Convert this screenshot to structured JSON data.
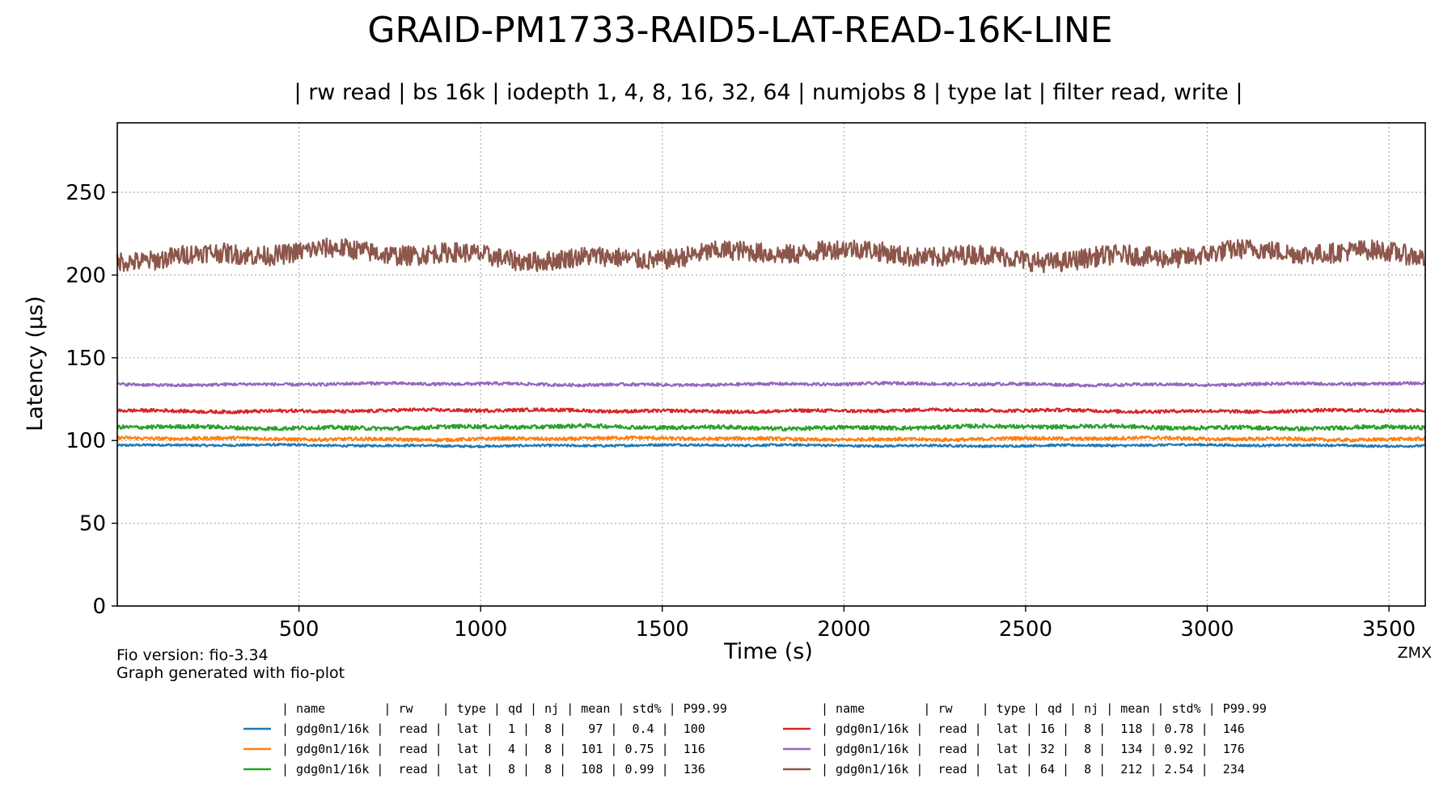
{
  "chart_data": {
    "type": "line",
    "title": "GRAID-PM1733-RAID5-LAT-READ-16K-LINE",
    "subtitle": "| rw read | bs 16k | iodepth 1, 4, 8, 16, 32, 64 | numjobs 8 | type lat | filter read, write |",
    "xlabel": "Time (s)",
    "ylabel": "Latency (µs)",
    "xlim": [
      0,
      3600
    ],
    "ylim": [
      0,
      292
    ],
    "xticks": [
      500,
      1000,
      1500,
      2000,
      2500,
      3000,
      3500
    ],
    "yticks": [
      0,
      50,
      100,
      150,
      200,
      250
    ],
    "grid": true,
    "series": [
      {
        "name": "gdg0n1/16k",
        "color": "#1f77b4",
        "rw": "read",
        "type": "lat",
        "qd": 1,
        "nj": 8,
        "mean": 97,
        "std": 0.4,
        "p9999": 100,
        "amp": 0.6
      },
      {
        "name": "gdg0n1/16k",
        "color": "#ff7f0e",
        "rw": "read",
        "type": "lat",
        "qd": 4,
        "nj": 8,
        "mean": 101,
        "std": 0.75,
        "p9999": 116,
        "amp": 0.9
      },
      {
        "name": "gdg0n1/16k",
        "color": "#2ca02c",
        "rw": "read",
        "type": "lat",
        "qd": 8,
        "nj": 8,
        "mean": 108,
        "std": 0.99,
        "p9999": 136,
        "amp": 1.1
      },
      {
        "name": "gdg0n1/16k",
        "color": "#d62728",
        "rw": "read",
        "type": "lat",
        "qd": 16,
        "nj": 8,
        "mean": 118,
        "std": 0.78,
        "p9999": 146,
        "amp": 0.9
      },
      {
        "name": "gdg0n1/16k",
        "color": "#9467bd",
        "rw": "read",
        "type": "lat",
        "qd": 32,
        "nj": 8,
        "mean": 134,
        "std": 0.92,
        "p9999": 176,
        "amp": 0.8
      },
      {
        "name": "gdg0n1/16k",
        "color": "#8c564b",
        "rw": "read",
        "type": "lat",
        "qd": 64,
        "nj": 8,
        "mean": 212,
        "std": 2.54,
        "p9999": 234,
        "amp": 5.5
      }
    ]
  },
  "footer": {
    "fio_version": "Fio version: fio-3.34",
    "generated": "Graph generated with fio-plot",
    "corner": "ZMX"
  },
  "legend": {
    "header": "| name        | rw    | type | qd | nj | mean | std% | P99.99",
    "rows": [
      "| gdg0n1/16k |  read |  lat |  1 |  8 |   97 |  0.4 |  100",
      "| gdg0n1/16k |  read |  lat |  4 |  8 |  101 | 0.75 |  116",
      "| gdg0n1/16k |  read |  lat |  8 |  8 |  108 | 0.99 |  136",
      "| gdg0n1/16k |  read |  lat | 16 |  8 |  118 | 0.78 |  146",
      "| gdg0n1/16k |  read |  lat | 32 |  8 |  134 | 0.92 |  176",
      "| gdg0n1/16k |  read |  lat | 64 |  8 |  212 | 2.54 |  234"
    ]
  }
}
